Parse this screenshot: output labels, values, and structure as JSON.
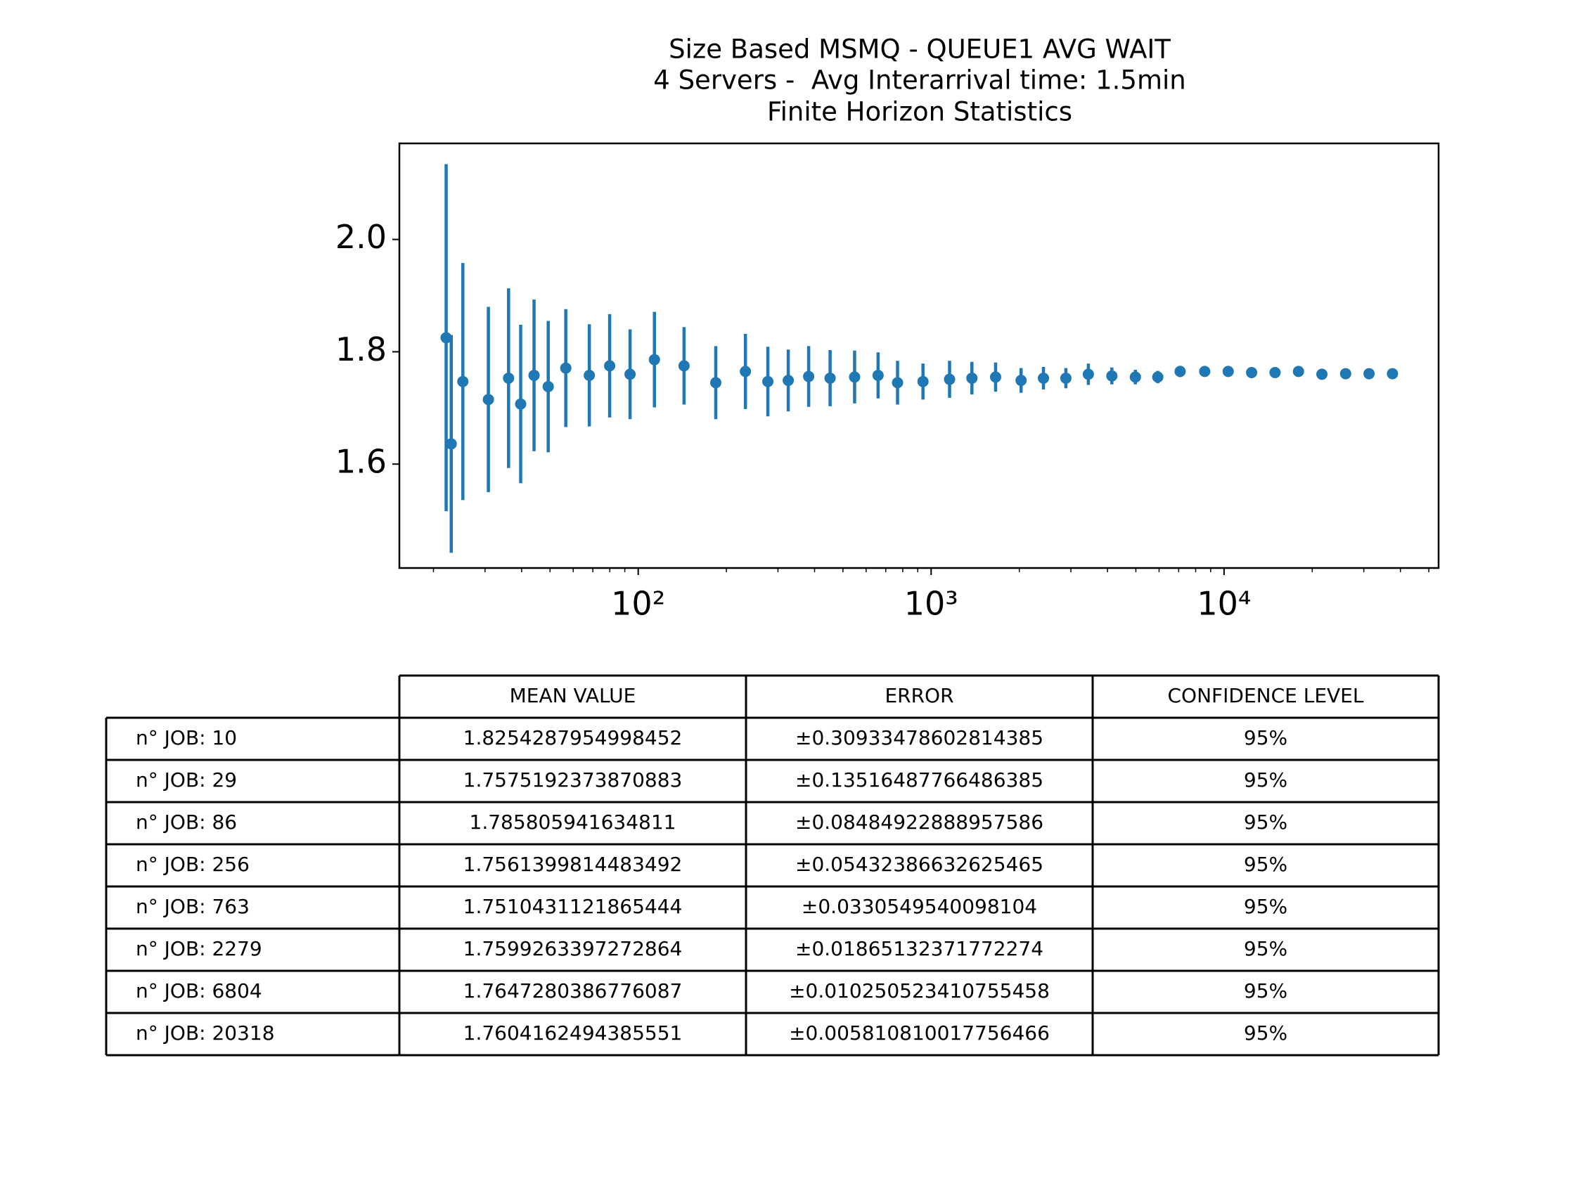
{
  "chart_data": {
    "type": "errorbar",
    "title": [
      "Size Based MSMQ - QUEUE1 AVG WAIT",
      "4 Servers -  Avg Interarrival time: 1.5min",
      "Finite Horizon Statistics"
    ],
    "color": "#1f77b4",
    "xscale": "log",
    "x": [
      22.1,
      23.0,
      25.2,
      30.8,
      36.1,
      39.7,
      44.1,
      49.3,
      56.6,
      68.1,
      79.9,
      93.8,
      113.6,
      143.4,
      184.0,
      232.3,
      277.1,
      325.3,
      381.9,
      452,
      548,
      659,
      768,
      938,
      1156,
      1378,
      1660,
      2028,
      2418,
      2884,
      3441,
      4140,
      4980,
      5940,
      7080,
      8590,
      10330,
      12420,
      14930,
      17950,
      21580,
      26000,
      31260,
      37580
    ],
    "values": [
      1.825,
      1.636,
      1.747,
      1.715,
      1.753,
      1.707,
      1.758,
      1.738,
      1.771,
      1.758,
      1.775,
      1.76,
      1.786,
      1.775,
      1.745,
      1.765,
      1.747,
      1.749,
      1.756,
      1.753,
      1.755,
      1.758,
      1.745,
      1.747,
      1.751,
      1.753,
      1.755,
      1.749,
      1.753,
      1.753,
      1.76,
      1.757,
      1.755,
      1.755,
      1.765,
      1.765,
      1.765,
      1.763,
      1.763,
      1.765,
      1.76,
      1.761,
      1.761,
      1.761
    ],
    "errors": [
      0.309,
      0.194,
      0.211,
      0.165,
      0.16,
      0.141,
      0.135,
      0.117,
      0.105,
      0.091,
      0.092,
      0.08,
      0.085,
      0.069,
      0.065,
      0.067,
      0.062,
      0.055,
      0.054,
      0.05,
      0.047,
      0.041,
      0.039,
      0.032,
      0.033,
      0.029,
      0.026,
      0.022,
      0.02,
      0.018,
      0.019,
      0.015,
      0.013,
      0.011,
      0.01,
      0.009,
      0.008,
      0.007,
      0.007,
      0.006,
      0.006,
      0.005,
      0.005,
      0.004
    ],
    "xlim": [
      15.3,
      54000
    ],
    "xticks": [
      {
        "value": 100,
        "label": "10²"
      },
      {
        "value": 1000,
        "label": "10³"
      },
      {
        "value": 10000,
        "label": "10⁴"
      }
    ],
    "xminor_ticks": [
      20,
      30,
      40,
      50,
      60,
      70,
      80,
      90,
      200,
      300,
      400,
      500,
      600,
      700,
      800,
      900,
      2000,
      3000,
      4000,
      5000,
      6000,
      7000,
      8000,
      9000,
      20000,
      30000,
      40000,
      50000
    ],
    "ylim": [
      1.415,
      2.171
    ],
    "yticks": [
      1.6,
      1.8,
      {
        "value": 2,
        "label": "2.0"
      }
    ],
    "grid": false
  },
  "table": {
    "header": [
      "MEAN VALUE",
      "ERROR",
      "CONFIDENCE LEVEL"
    ],
    "rows": [
      [
        "n° JOB: 10",
        "1.8254287954998452",
        "±0.30933478602814385",
        "95%"
      ],
      [
        "n° JOB: 29",
        "1.7575192373870883",
        "±0.13516487766486385",
        "95%"
      ],
      [
        "n° JOB: 86",
        "1.785805941634811",
        "±0.08484922888957586",
        "95%"
      ],
      [
        "n° JOB: 256",
        "1.7561399814483492",
        "±0.05432386632625465",
        "95%"
      ],
      [
        "n° JOB: 763",
        "1.7510431121865444",
        "±0.0330549540098104",
        "95%"
      ],
      [
        "n° JOB: 2279",
        "1.7599263397272864",
        "±0.01865132371772274",
        "95%"
      ],
      [
        "n° JOB: 6804",
        "1.7647280386776087",
        "±0.010250523410755458",
        "95%"
      ],
      [
        "n° JOB: 20318",
        "1.7604162494385551",
        "±0.005810810017756466",
        "95%"
      ]
    ]
  }
}
